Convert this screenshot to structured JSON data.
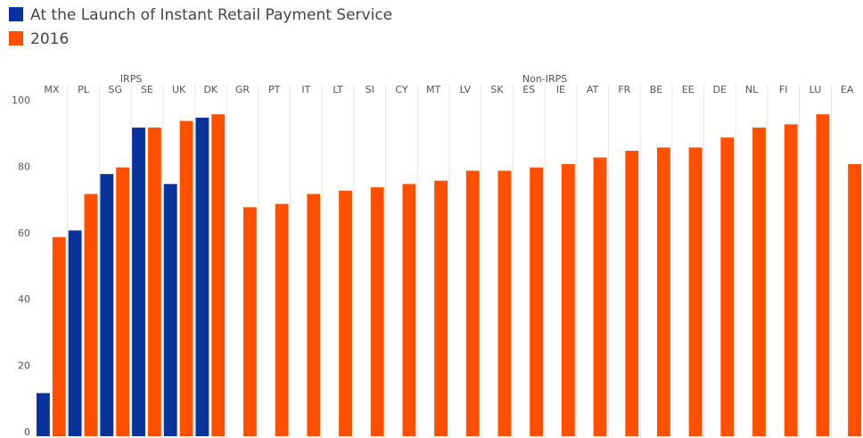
{
  "chart_data": {
    "type": "bar",
    "categories": [
      "MX",
      "PL",
      "SG",
      "SE",
      "UK",
      "DK",
      "GR",
      "PT",
      "IT",
      "LT",
      "SI",
      "CY",
      "MT",
      "LV",
      "SK",
      "ES",
      "IE",
      "AT",
      "FR",
      "BE",
      "EE",
      "DE",
      "NL",
      "FI",
      "LU",
      "EA"
    ],
    "groups": [
      "IRPS",
      "Non-IRPS"
    ],
    "series": [
      {
        "name": "At the Launch of Instant Retail Payment Service",
        "color": "#0a3399",
        "values": [
          13,
          62,
          79,
          93,
          76,
          96,
          null,
          null,
          null,
          null,
          null,
          null,
          null,
          null,
          null,
          null,
          null,
          null,
          null,
          null,
          null,
          null,
          null,
          null,
          null,
          null
        ]
      },
      {
        "name": "2016",
        "color": "#ff4f00",
        "values": [
          60,
          73,
          81,
          93,
          95,
          97,
          69,
          70,
          73,
          74,
          75,
          76,
          77,
          80,
          80,
          81,
          82,
          84,
          86,
          87,
          87,
          90,
          93,
          94,
          97,
          82
        ]
      }
    ],
    "ylim": [
      0,
      100
    ],
    "yticks": [
      0,
      20,
      40,
      60,
      80,
      100
    ],
    "grid": false
  }
}
